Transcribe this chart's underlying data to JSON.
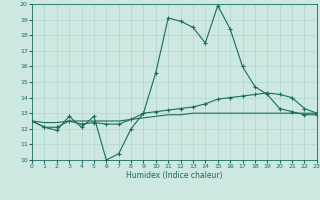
{
  "xlabel": "Humidex (Indice chaleur)",
  "xlim": [
    0,
    23
  ],
  "ylim": [
    10,
    20
  ],
  "yticks": [
    10,
    11,
    12,
    13,
    14,
    15,
    16,
    17,
    18,
    19,
    20
  ],
  "xticks": [
    0,
    1,
    2,
    3,
    4,
    5,
    6,
    7,
    8,
    9,
    10,
    11,
    12,
    13,
    14,
    15,
    16,
    17,
    18,
    19,
    20,
    21,
    22,
    23
  ],
  "bg_color": "#cce8e0",
  "line_color": "#1a6b5e",
  "grid_color": "#b0d8cf",
  "line1_x": [
    0,
    1,
    2,
    3,
    4,
    5,
    6,
    7,
    8,
    9,
    10,
    11,
    12,
    13,
    14,
    15,
    16,
    17,
    18,
    19,
    20,
    21,
    22,
    23
  ],
  "line1_y": [
    12.5,
    12.1,
    11.9,
    12.8,
    12.1,
    12.8,
    10.0,
    10.4,
    12.0,
    13.0,
    15.6,
    19.1,
    18.9,
    18.5,
    17.5,
    19.9,
    18.4,
    16.0,
    14.7,
    14.2,
    13.3,
    13.1,
    12.9,
    12.9
  ],
  "line2_x": [
    0,
    1,
    2,
    3,
    4,
    5,
    6,
    7,
    8,
    9,
    10,
    11,
    12,
    13,
    14,
    15,
    16,
    17,
    18,
    19,
    20,
    21,
    22,
    23
  ],
  "line2_y": [
    12.5,
    12.1,
    12.1,
    12.5,
    12.3,
    12.4,
    12.3,
    12.3,
    12.6,
    13.0,
    13.1,
    13.2,
    13.3,
    13.4,
    13.6,
    13.9,
    14.0,
    14.1,
    14.2,
    14.3,
    14.2,
    14.0,
    13.3,
    13.0
  ],
  "line3_x": [
    0,
    1,
    2,
    3,
    4,
    5,
    6,
    7,
    8,
    9,
    10,
    11,
    12,
    13,
    14,
    15,
    16,
    17,
    18,
    19,
    20,
    21,
    22,
    23
  ],
  "line3_y": [
    12.5,
    12.4,
    12.4,
    12.5,
    12.5,
    12.5,
    12.5,
    12.5,
    12.6,
    12.7,
    12.8,
    12.9,
    12.9,
    13.0,
    13.0,
    13.0,
    13.0,
    13.0,
    13.0,
    13.0,
    13.0,
    13.0,
    13.0,
    13.0
  ]
}
